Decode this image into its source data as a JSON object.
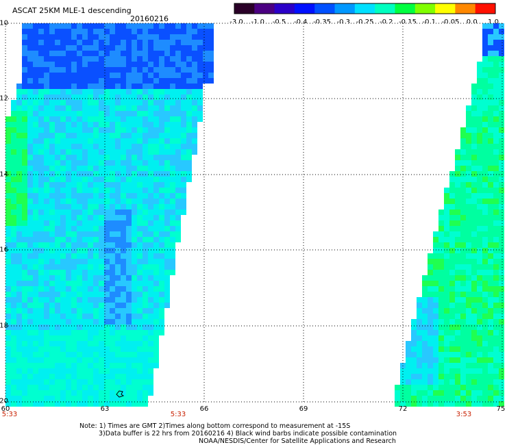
{
  "header": {
    "title": "ASCAT 25KM MLE-1 descending",
    "date": "20160216"
  },
  "colorbar": {
    "labels": [
      "-3.0",
      "-1.0",
      "-0.5",
      "-0.4",
      "-0.35",
      "-0.3",
      "-0.25",
      "-0.2",
      "-0.15",
      "-0.1",
      "-0.05",
      "0.0",
      "1.0"
    ],
    "colors": [
      "#2a0028",
      "#4b0082",
      "#2b00c8",
      "#0010ff",
      "#0050ff",
      "#0098ff",
      "#00e0ff",
      "#00ffc0",
      "#00ff40",
      "#80ff00",
      "#ffff00",
      "#ff8800",
      "#ff1000"
    ]
  },
  "axes": {
    "y_labels": [
      "-10",
      "-12",
      "-14",
      "-16",
      "-18",
      "-20"
    ],
    "x_labels": [
      "60",
      "63",
      "66",
      "69",
      "72",
      "75"
    ],
    "lat_range": [
      -20,
      -10
    ],
    "lon_range": [
      60,
      75
    ],
    "grid": "dotted"
  },
  "times": {
    "left_start": "5:33",
    "left_end": "5:33",
    "right": "3:53"
  },
  "notes": {
    "line1": "Note: 1) Times are GMT 2)Times along bottom correspond to measurement at -15S",
    "line2": "3)Data buffer is 22 hrs from 20160216 4) Black wind barbs indicate possible contamination",
    "line3": "NOAA/NESDIS/Center for Satellite Applications and Research"
  },
  "swath_colors": {
    "deep_blue": "#0a50ff",
    "blue": "#1e8cff",
    "light_blue": "#28c8ff",
    "cyan": "#00f0f0",
    "aqua": "#00ffd0",
    "green_cyan": "#00ffa0",
    "green": "#20ff50"
  }
}
